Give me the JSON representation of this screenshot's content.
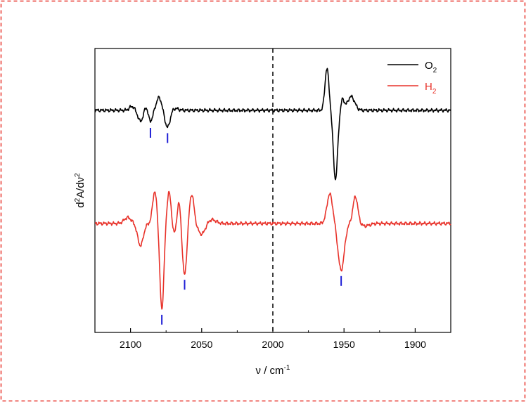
{
  "chart_data": {
    "type": "line",
    "title": "",
    "xlabel": "ν / cm",
    "xlabel_sup": "-1",
    "ylabel_parts": [
      "d",
      "2",
      "A/dν",
      "2"
    ],
    "xlim": [
      2125,
      1875
    ],
    "x_reversed": true,
    "xticks": [
      2100,
      2050,
      2000,
      1950,
      1900
    ],
    "show_yticks": false,
    "grid": false,
    "legend_position": "top-right",
    "reference_line": {
      "x": 2000,
      "style": "dashed",
      "color": "#000000"
    },
    "series": [
      {
        "name": "O2",
        "name_base": "O",
        "name_sub": "2",
        "color": "#000000",
        "offset": 1.6,
        "features": [
          {
            "center": 2099,
            "amp": 0.08,
            "width": 1.8
          },
          {
            "center": 2093,
            "amp": -0.22,
            "width": 1.8
          },
          {
            "center": 2089,
            "amp": 0.1,
            "width": 1.2
          },
          {
            "center": 2086,
            "amp": -0.22,
            "width": 1.5
          },
          {
            "center": 2080,
            "amp": 0.26,
            "width": 1.8
          },
          {
            "center": 2074,
            "amp": -0.35,
            "width": 1.8
          },
          {
            "center": 2069,
            "amp": 0.04,
            "width": 2.5
          },
          {
            "center": 1962,
            "amp": 0.85,
            "width": 1.4
          },
          {
            "center": 1956,
            "amp": -1.4,
            "width": 1.5
          },
          {
            "center": 1951,
            "amp": 0.22,
            "width": 1.2
          },
          {
            "center": 1945,
            "amp": 0.28,
            "width": 2.5
          }
        ]
      },
      {
        "name": "H2",
        "name_base": "H",
        "name_sub": "2",
        "color": "#e8322a",
        "offset": 0.0,
        "features": [
          {
            "center": 2102,
            "amp": 0.12,
            "width": 2.5
          },
          {
            "center": 2093,
            "amp": -0.45,
            "width": 2.0
          },
          {
            "center": 2083,
            "amp": 0.65,
            "width": 1.5
          },
          {
            "center": 2078,
            "amp": -1.75,
            "width": 1.4
          },
          {
            "center": 2073,
            "amp": 0.65,
            "width": 1.3
          },
          {
            "center": 2069,
            "amp": -0.2,
            "width": 1.2
          },
          {
            "center": 2066,
            "amp": 0.45,
            "width": 1.2
          },
          {
            "center": 2062,
            "amp": -1.05,
            "width": 1.5
          },
          {
            "center": 2057,
            "amp": 0.6,
            "width": 1.6
          },
          {
            "center": 2050,
            "amp": -0.22,
            "width": 2.5
          },
          {
            "center": 2043,
            "amp": 0.08,
            "width": 3.0
          },
          {
            "center": 1960,
            "amp": 0.6,
            "width": 2.0
          },
          {
            "center": 1952,
            "amp": -0.95,
            "width": 2.2
          },
          {
            "center": 1942,
            "amp": 0.55,
            "width": 1.7
          },
          {
            "center": 1935,
            "amp": -0.05,
            "width": 3.0
          }
        ]
      }
    ],
    "markers": [
      {
        "x": 2086,
        "series": "O2",
        "color": "#1f1fd6"
      },
      {
        "x": 2074,
        "series": "O2",
        "color": "#1f1fd6"
      },
      {
        "x": 2078,
        "series": "H2",
        "color": "#1f1fd6"
      },
      {
        "x": 2062,
        "series": "H2",
        "color": "#1f1fd6"
      },
      {
        "x": 1952,
        "series": "H2",
        "color": "#1f1fd6"
      }
    ],
    "frame_color": "#e8322a"
  }
}
